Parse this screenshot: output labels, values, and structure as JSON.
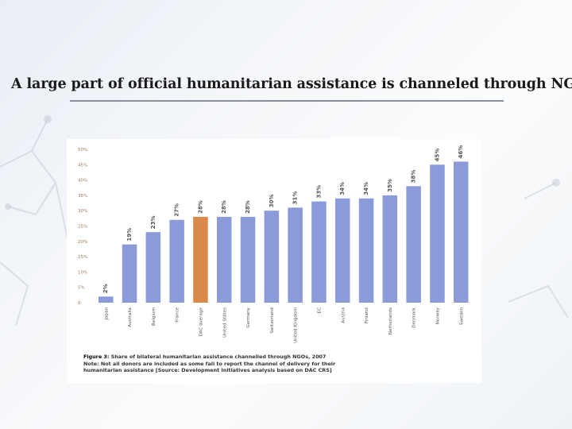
{
  "slide": {
    "title": "A large part of official humanitarian assistance is channeled through NGOs"
  },
  "figure": {
    "caption_label": "Figure 3:",
    "caption_title": "Share of bilateral humanitarian assistance channelled through NGOs, 2007",
    "caption_note_1": "Note: Not all donors are included as some fail to report the channel of delivery for their",
    "caption_note_2": "humanitarian assistance [Source: Development Initiatives analysis based on DAC CRS]"
  },
  "colors": {
    "bar": "#8b9ad8",
    "highlight": "#d9894a",
    "tick_text": "#9a7a5a",
    "label_text": "#555555"
  },
  "chart_data": {
    "type": "bar",
    "categories": [
      "Japan",
      "Australia",
      "Belgium",
      "France",
      "DAC average",
      "United States",
      "Germany",
      "Switzerland",
      "United Kingdom",
      "EC",
      "Austria",
      "Finland",
      "Netherlands",
      "Denmark",
      "Norway",
      "Sweden"
    ],
    "values": [
      2,
      19,
      23,
      27,
      28,
      28,
      28,
      30,
      31,
      33,
      34,
      34,
      35,
      38,
      45,
      46
    ],
    "value_labels": [
      "2%",
      "19%",
      "23%",
      "27%",
      "28%",
      "28%",
      "28%",
      "30%",
      "31%",
      "33%",
      "34%",
      "34%",
      "35%",
      "38%",
      "45%",
      "46%"
    ],
    "highlight_category": "DAC average",
    "yticks": [
      0,
      5,
      10,
      15,
      20,
      25,
      30,
      35,
      40,
      45,
      50
    ],
    "ytick_labels": [
      "0",
      "5%",
      "10%",
      "15%",
      "20%",
      "25%",
      "30%",
      "35%",
      "40%",
      "45%",
      "50%"
    ],
    "ylim": [
      0,
      50
    ],
    "grid": false,
    "legend": "none"
  }
}
